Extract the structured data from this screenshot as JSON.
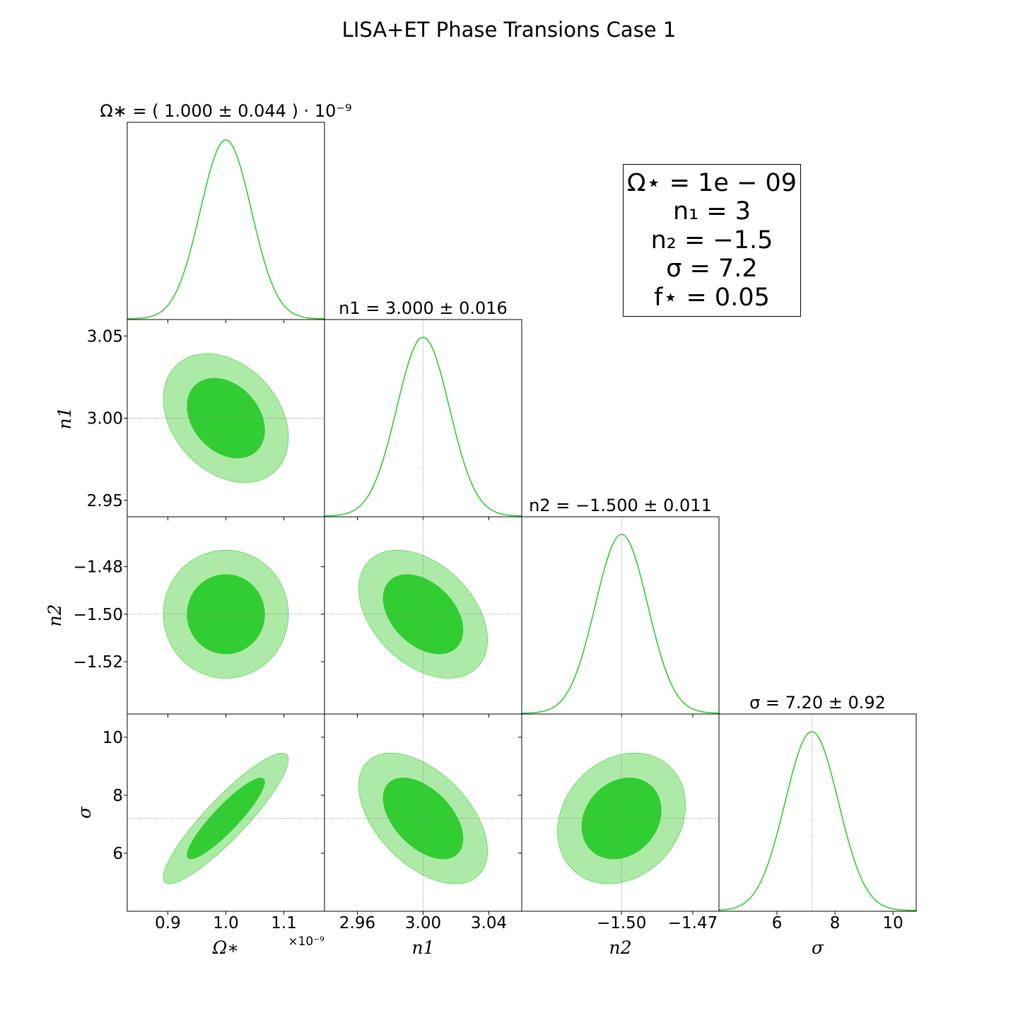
{
  "figure": {
    "title": "LISA+ET Phase Transions Case 1",
    "offset_label": "×10⁻⁹",
    "truth_box": [
      "Ω⋆ = 1e − 09",
      "n₁ = 3",
      "n₂ = −1.5",
      "σ = 7.2",
      "f⋆ = 0.05"
    ]
  },
  "colors": {
    "line": "#32cd32",
    "inner": "#32cd32",
    "outer": "#aeeaa7",
    "truth": "#808080",
    "axes": "#000000"
  },
  "chart_data": {
    "type": "corner",
    "params": [
      {
        "name": "Ω∗",
        "display_scale": "×10⁻⁹",
        "truth": 1.0,
        "mean": 1.0,
        "sigma": 0.044,
        "range": [
          0.83,
          1.17
        ],
        "ticks": [
          0.9,
          1.0,
          1.1
        ],
        "tick_labels": [
          "0.9",
          "1.0",
          "1.1"
        ],
        "title": "Ω∗ = ( 1.000 ± 0.044 ) · 10⁻⁹"
      },
      {
        "name": "n1",
        "truth": 3.0,
        "mean": 3.0,
        "sigma": 0.016,
        "range": [
          2.94,
          3.06
        ],
        "ticks": [
          2.96,
          3.0,
          3.04
        ],
        "tick_labels": [
          "2.96",
          "3.00",
          "3.04"
        ],
        "y_ticks": [
          2.95,
          3.0,
          3.05
        ],
        "y_tick_labels": [
          "2.95",
          "3.00",
          "3.05"
        ],
        "title": "n1 = 3.000 ± 0.016"
      },
      {
        "name": "n2",
        "truth": -1.5,
        "mean": -1.5,
        "sigma": 0.011,
        "range": [
          -1.542,
          -1.459
        ],
        "ticks": [
          -1.5,
          -1.47
        ],
        "tick_labels": [
          "−1.50",
          "−1.47"
        ],
        "y_ticks": [
          -1.48,
          -1.5,
          -1.52
        ],
        "y_tick_labels": [
          "−1.48",
          "−1.50",
          "−1.52"
        ],
        "title": "n2 = −1.500 ± 0.011"
      },
      {
        "name": "σ",
        "truth": 7.2,
        "mean": 7.2,
        "sigma": 0.92,
        "range": [
          4.0,
          10.8
        ],
        "ticks": [
          6,
          8,
          10
        ],
        "tick_labels": [
          "6",
          "8",
          "10"
        ],
        "y_ticks": [
          6,
          8
        ],
        "y_tick_labels": [
          "6",
          "8"
        ],
        "title": "σ = 7.20 ± 0.92"
      }
    ],
    "correlations": [
      [
        1.0,
        -0.3,
        0.0,
        0.9
      ],
      [
        -0.3,
        1.0,
        -0.4,
        -0.5
      ],
      [
        0.0,
        -0.4,
        1.0,
        0.2
      ],
      [
        0.9,
        -0.5,
        0.2,
        1.0
      ]
    ],
    "contour_levels": [
      "68%",
      "95%"
    ],
    "y_tick_extra": {
      "sigma": [
        10
      ],
      "sigma_labels": [
        "10"
      ]
    }
  }
}
